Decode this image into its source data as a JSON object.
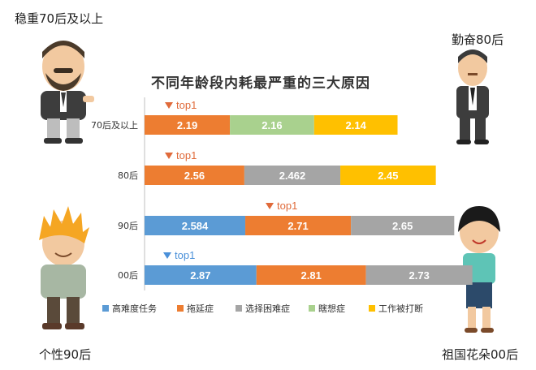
{
  "corner_labels": {
    "top_left": "稳重70后及以上",
    "top_right": "勤奋80后",
    "bottom_left": "个性90后",
    "bottom_right": "祖国花朵00后"
  },
  "colors": {
    "高难度任务": "#5b9bd5",
    "拖延症": "#ed7d31",
    "选择困难症": "#a5a5a5",
    "瞎想症": "#a9d18e",
    "工作被打断": "#ffc000",
    "top_marker": "#e06a3a",
    "top_marker_blue": "#4a90d9"
  },
  "chart_data": {
    "type": "bar",
    "orientation": "horizontal",
    "stacked": true,
    "title": "不同年龄段内耗最严重的三大原因",
    "categories": [
      "70后及以上",
      "80后",
      "90后",
      "00后"
    ],
    "series": [
      {
        "name": "高难度任务",
        "values": [
          null,
          null,
          2.584,
          2.87
        ]
      },
      {
        "name": "拖延症",
        "values": [
          2.19,
          2.56,
          2.71,
          2.81
        ]
      },
      {
        "name": "选择困难症",
        "values": [
          null,
          2.462,
          2.65,
          2.73
        ]
      },
      {
        "name": "瞎想症",
        "values": [
          2.16,
          null,
          null,
          null
        ]
      },
      {
        "name": "工作被打断",
        "values": [
          2.14,
          2.45,
          null,
          null
        ]
      }
    ],
    "row_values": [
      [
        {
          "series": "拖延症",
          "value": 2.19
        },
        {
          "series": "瞎想症",
          "value": 2.16
        },
        {
          "series": "工作被打断",
          "value": 2.14
        }
      ],
      [
        {
          "series": "拖延症",
          "value": 2.56
        },
        {
          "series": "选择困难症",
          "value": 2.462
        },
        {
          "series": "工作被打断",
          "value": 2.45
        }
      ],
      [
        {
          "series": "高难度任务",
          "value": 2.584
        },
        {
          "series": "拖延症",
          "value": 2.71
        },
        {
          "series": "选择困难症",
          "value": 2.65
        }
      ],
      [
        {
          "series": "高难度任务",
          "value": 2.87
        },
        {
          "series": "拖延症",
          "value": 2.81
        },
        {
          "series": "选择困难症",
          "value": 2.73
        }
      ]
    ],
    "top_markers": [
      {
        "category": "70后及以上",
        "series": "拖延症",
        "label": "top1"
      },
      {
        "category": "80后",
        "series": "拖延症",
        "label": "top1"
      },
      {
        "category": "90后",
        "series": "拖延症",
        "label": "top1"
      },
      {
        "category": "00后",
        "series": "高难度任务",
        "label": "top1"
      }
    ],
    "legend": [
      "高难度任务",
      "拖延症",
      "选择困难症",
      "瞎想症",
      "工作被打断"
    ],
    "legend_position": "bottom",
    "grid": false
  }
}
